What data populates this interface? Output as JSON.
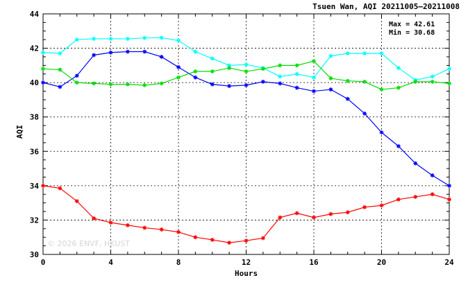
{
  "chart_data": {
    "type": "line",
    "title": "Tsuen Wan, AQI 20211005–20211008",
    "xlabel": "Hours",
    "ylabel": "AQI",
    "x": [
      0,
      1,
      2,
      3,
      4,
      5,
      6,
      7,
      8,
      9,
      10,
      11,
      12,
      13,
      14,
      15,
      16,
      17,
      18,
      19,
      20,
      21,
      22,
      23,
      24
    ],
    "xlim": [
      0,
      24
    ],
    "ylim": [
      30,
      44
    ],
    "xticks": [
      0,
      4,
      8,
      12,
      16,
      20,
      24
    ],
    "yticks": [
      30,
      32,
      34,
      36,
      38,
      40,
      42,
      44
    ],
    "grid": true,
    "stats": {
      "max": "Max = 42.61",
      "min": "Min = 30.68"
    },
    "watermark": "© 2026 ENVF, HKUST",
    "series": [
      {
        "color": "#00ffff",
        "values": [
          41.75,
          41.7,
          42.5,
          42.55,
          42.55,
          42.55,
          42.6,
          42.61,
          42.45,
          41.8,
          41.4,
          41.0,
          41.05,
          40.85,
          40.35,
          40.5,
          40.3,
          41.55,
          41.7,
          41.7,
          41.7,
          40.85,
          40.15,
          40.35,
          40.8
        ]
      },
      {
        "color": "#0000ff",
        "values": [
          40.0,
          39.75,
          40.4,
          41.6,
          41.75,
          41.8,
          41.8,
          41.5,
          40.9,
          40.3,
          39.9,
          39.8,
          39.85,
          40.05,
          39.95,
          39.7,
          39.5,
          39.6,
          39.05,
          38.2,
          37.1,
          36.3,
          35.3,
          34.6,
          34.0
        ]
      },
      {
        "color": "#00dd00",
        "values": [
          40.8,
          40.75,
          40.0,
          39.95,
          39.9,
          39.9,
          39.85,
          39.95,
          40.3,
          40.65,
          40.65,
          40.85,
          40.65,
          40.8,
          41.0,
          41.0,
          41.25,
          40.25,
          40.1,
          40.05,
          39.6,
          39.7,
          40.05,
          40.05,
          39.95
        ]
      },
      {
        "color": "#ff0000",
        "values": [
          34.0,
          33.85,
          33.1,
          32.1,
          31.85,
          31.7,
          31.55,
          31.45,
          31.3,
          31.0,
          30.85,
          30.68,
          30.8,
          30.95,
          32.15,
          32.4,
          32.15,
          32.35,
          32.45,
          32.75,
          32.85,
          33.2,
          33.35,
          33.5,
          33.2
        ]
      }
    ]
  }
}
